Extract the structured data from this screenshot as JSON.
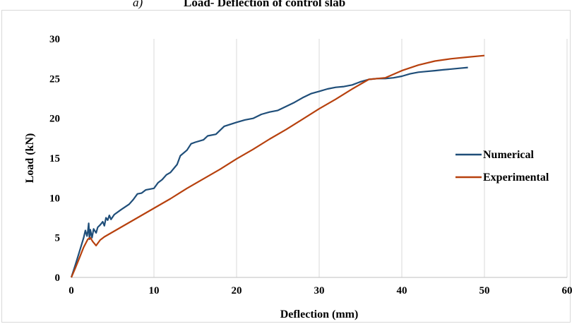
{
  "caption": {
    "label": "a)",
    "title": "Load- Deflection of control slab"
  },
  "chart_data": {
    "type": "line",
    "xlabel": "Deflection (mm)",
    "ylabel": "Load (kN)",
    "xlim": [
      0,
      60
    ],
    "ylim": [
      0,
      30
    ],
    "xticks": [
      0,
      10,
      20,
      30,
      40,
      50,
      60
    ],
    "yticks": [
      0,
      5,
      10,
      15,
      20,
      25,
      30
    ],
    "grid": "vertical",
    "legend_position": "right",
    "series": [
      {
        "name": "Numerical",
        "color": "#1f4e79",
        "points": [
          [
            0,
            0
          ],
          [
            0.5,
            1.6
          ],
          [
            1,
            3.3
          ],
          [
            1.5,
            5
          ],
          [
            1.7,
            5.9
          ],
          [
            1.9,
            5.2
          ],
          [
            2,
            5.8
          ],
          [
            2.1,
            6.8
          ],
          [
            2.2,
            4.8
          ],
          [
            2.3,
            6
          ],
          [
            2.5,
            5
          ],
          [
            2.7,
            6.1
          ],
          [
            3,
            5.6
          ],
          [
            3.2,
            6.3
          ],
          [
            3.5,
            6.6
          ],
          [
            3.8,
            7
          ],
          [
            4,
            6.5
          ],
          [
            4.2,
            7.5
          ],
          [
            4.4,
            7.2
          ],
          [
            4.6,
            7.8
          ],
          [
            4.8,
            7.3
          ],
          [
            5.2,
            7.9
          ],
          [
            6,
            8.5
          ],
          [
            7,
            9.2
          ],
          [
            7.5,
            9.8
          ],
          [
            8,
            10.5
          ],
          [
            8.5,
            10.6
          ],
          [
            9,
            11
          ],
          [
            10,
            11.2
          ],
          [
            10.5,
            11.9
          ],
          [
            11,
            12.3
          ],
          [
            11.5,
            12.9
          ],
          [
            12,
            13.2
          ],
          [
            12.8,
            14.2
          ],
          [
            13.2,
            15.3
          ],
          [
            14,
            16
          ],
          [
            14.5,
            16.8
          ],
          [
            15,
            17
          ],
          [
            16,
            17.3
          ],
          [
            16.5,
            17.8
          ],
          [
            17.5,
            18
          ],
          [
            18.5,
            19
          ],
          [
            20,
            19.5
          ],
          [
            21,
            19.8
          ],
          [
            22,
            20
          ],
          [
            23,
            20.5
          ],
          [
            24,
            20.8
          ],
          [
            25,
            21
          ],
          [
            26,
            21.5
          ],
          [
            27,
            22
          ],
          [
            28,
            22.6
          ],
          [
            29,
            23.1
          ],
          [
            30,
            23.4
          ],
          [
            31,
            23.7
          ],
          [
            32,
            23.9
          ],
          [
            33,
            24
          ],
          [
            34,
            24.2
          ],
          [
            35,
            24.6
          ],
          [
            36,
            24.9
          ],
          [
            37,
            25
          ],
          [
            38,
            25
          ],
          [
            39,
            25.1
          ],
          [
            40,
            25.3
          ],
          [
            41,
            25.6
          ],
          [
            42,
            25.8
          ],
          [
            43,
            25.9
          ],
          [
            44,
            26
          ],
          [
            45,
            26.1
          ],
          [
            46,
            26.2
          ],
          [
            47,
            26.3
          ],
          [
            48,
            26.4
          ]
        ]
      },
      {
        "name": "Experimental",
        "color": "#b7410e",
        "points": [
          [
            0,
            0
          ],
          [
            0.5,
            1.2
          ],
          [
            1,
            2.5
          ],
          [
            1.5,
            3.8
          ],
          [
            2,
            4.8
          ],
          [
            2.3,
            5
          ],
          [
            2.6,
            4.5
          ],
          [
            3,
            4
          ],
          [
            3.5,
            4.7
          ],
          [
            4,
            5.1
          ],
          [
            6,
            6.3
          ],
          [
            8,
            7.5
          ],
          [
            10,
            8.7
          ],
          [
            12,
            9.9
          ],
          [
            14,
            11.2
          ],
          [
            16,
            12.4
          ],
          [
            18,
            13.6
          ],
          [
            20,
            14.9
          ],
          [
            22,
            16.1
          ],
          [
            24,
            17.4
          ],
          [
            26,
            18.6
          ],
          [
            28,
            19.9
          ],
          [
            30,
            21.2
          ],
          [
            32,
            22.4
          ],
          [
            34,
            23.7
          ],
          [
            36,
            24.9
          ],
          [
            38,
            25.1
          ],
          [
            40,
            26
          ],
          [
            42,
            26.7
          ],
          [
            44,
            27.2
          ],
          [
            46,
            27.5
          ],
          [
            48,
            27.7
          ],
          [
            50,
            27.9
          ]
        ]
      }
    ]
  }
}
